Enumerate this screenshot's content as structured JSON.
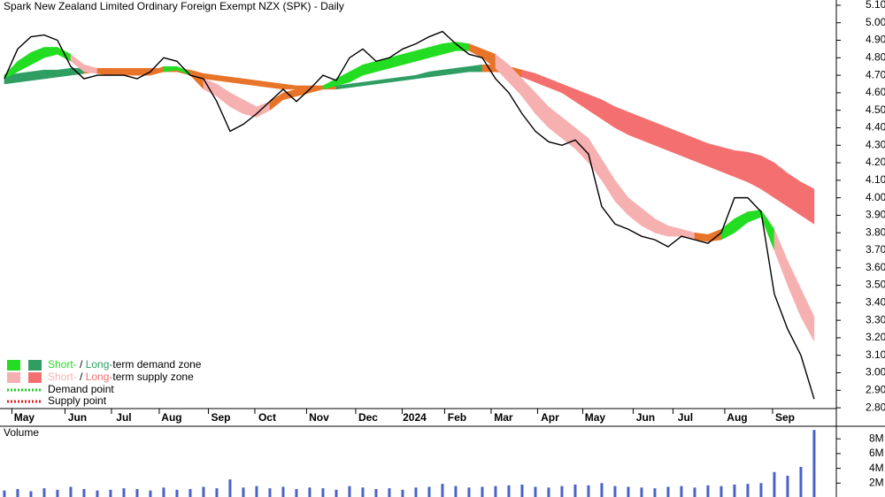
{
  "chart_data": {
    "type": "line",
    "title": "Spark New Zealand Limited Ordinary Foreign Exempt NZX (SPK) - Daily",
    "ylim": [
      2.75,
      5.13
    ],
    "yticks": [
      {
        "value": 2.8,
        "label": "2.80"
      },
      {
        "value": 2.9,
        "label": "2.90"
      },
      {
        "value": 3.0,
        "label": "3.00"
      },
      {
        "value": 3.1,
        "label": "3.10"
      },
      {
        "value": 3.2,
        "label": "3.20"
      },
      {
        "value": 3.3,
        "label": "3.30"
      },
      {
        "value": 3.4,
        "label": "3.40"
      },
      {
        "value": 3.5,
        "label": "3.50"
      },
      {
        "value": 3.6,
        "label": "3.60"
      },
      {
        "value": 3.7,
        "label": "3.70"
      },
      {
        "value": 3.8,
        "label": "3.80"
      },
      {
        "value": 3.9,
        "label": "3.90"
      },
      {
        "value": 4.0,
        "label": "4.00"
      },
      {
        "value": 4.1,
        "label": "4.10"
      },
      {
        "value": 4.2,
        "label": "4.20"
      },
      {
        "value": 4.3,
        "label": "4.30"
      },
      {
        "value": 4.4,
        "label": "4.40"
      },
      {
        "value": 4.5,
        "label": "4.50"
      },
      {
        "value": 4.6,
        "label": "4.60"
      },
      {
        "value": 4.7,
        "label": "4.70"
      },
      {
        "value": 4.8,
        "label": "4.80"
      },
      {
        "value": 4.9,
        "label": "4.90"
      },
      {
        "value": 5.0,
        "label": "5.00"
      },
      {
        "value": 5.1,
        "label": "5.10"
      }
    ],
    "xlim": [
      -0.33,
      62.67
    ],
    "xticks": [
      {
        "value": 1.5,
        "label": "May"
      },
      {
        "value": 5.5,
        "label": "Jun"
      },
      {
        "value": 9,
        "label": "Jul"
      },
      {
        "value": 12.6,
        "label": "Aug"
      },
      {
        "value": 16.3,
        "label": "Sep"
      },
      {
        "value": 19.8,
        "label": "Oct"
      },
      {
        "value": 23.7,
        "label": "Nov"
      },
      {
        "value": 27.4,
        "label": "Dec"
      },
      {
        "value": 30.9,
        "label": "2024"
      },
      {
        "value": 34.1,
        "label": "Feb"
      },
      {
        "value": 37.6,
        "label": "Mar"
      },
      {
        "value": 41.1,
        "label": "Apr"
      },
      {
        "value": 44.5,
        "label": "May"
      },
      {
        "value": 48.3,
        "label": "Jun"
      },
      {
        "value": 51.3,
        "label": "Jul"
      },
      {
        "value": 55.2,
        "label": "Aug"
      },
      {
        "value": 58.8,
        "label": "Sep"
      }
    ],
    "price": {
      "color": "#000000",
      "values": [
        4.68,
        4.85,
        4.92,
        4.93,
        4.9,
        4.75,
        4.68,
        4.7,
        4.7,
        4.7,
        4.68,
        4.72,
        4.8,
        4.78,
        4.7,
        4.68,
        4.55,
        4.38,
        4.42,
        4.48,
        4.55,
        4.62,
        4.55,
        4.62,
        4.7,
        4.67,
        4.8,
        4.85,
        4.78,
        4.8,
        4.85,
        4.88,
        4.92,
        4.95,
        4.88,
        4.82,
        4.8,
        4.68,
        4.6,
        4.48,
        4.38,
        4.32,
        4.3,
        4.33,
        4.25,
        3.95,
        3.85,
        3.82,
        3.78,
        3.76,
        3.72,
        3.78,
        3.76,
        3.74,
        3.8,
        4.0,
        4.0,
        3.92,
        3.45,
        3.25,
        3.1,
        2.85
      ]
    },
    "long_band": {
      "upper": [
        4.7,
        4.71,
        4.72,
        4.73,
        4.73,
        4.74,
        4.74,
        4.74,
        4.74,
        4.74,
        4.74,
        4.74,
        4.74,
        4.74,
        4.73,
        4.71,
        4.7,
        4.69,
        4.68,
        4.67,
        4.66,
        4.65,
        4.64,
        4.64,
        4.64,
        4.64,
        4.65,
        4.66,
        4.67,
        4.68,
        4.69,
        4.7,
        4.72,
        4.73,
        4.74,
        4.75,
        4.76,
        4.76,
        4.75,
        4.73,
        4.71,
        4.68,
        4.65,
        4.62,
        4.59,
        4.56,
        4.52,
        4.49,
        4.46,
        4.43,
        4.4,
        4.37,
        4.34,
        4.31,
        4.29,
        4.27,
        4.26,
        4.24,
        4.2,
        4.14,
        4.09,
        4.05
      ],
      "lower": [
        4.65,
        4.66,
        4.67,
        4.68,
        4.69,
        4.7,
        4.71,
        4.72,
        4.72,
        4.72,
        4.72,
        4.72,
        4.72,
        4.72,
        4.7,
        4.68,
        4.67,
        4.66,
        4.65,
        4.64,
        4.63,
        4.62,
        4.62,
        4.62,
        4.62,
        4.62,
        4.63,
        4.64,
        4.65,
        4.66,
        4.67,
        4.68,
        4.69,
        4.7,
        4.71,
        4.72,
        4.72,
        4.72,
        4.71,
        4.69,
        4.66,
        4.63,
        4.6,
        4.55,
        4.5,
        4.45,
        4.4,
        4.36,
        4.33,
        4.3,
        4.27,
        4.24,
        4.21,
        4.18,
        4.15,
        4.12,
        4.09,
        4.05,
        4.0,
        3.95,
        3.9,
        3.85
      ],
      "colors": [
        "#2e9e63",
        "#2e9e63",
        "#2e9e63",
        "#2e9e63",
        "#2e9e63",
        "#2e9e63",
        "#e8742a",
        "#e8742a",
        "#e8742a",
        "#e8742a",
        "#e8742a",
        "#e8742a",
        "#e8742a",
        "#e8742a",
        "#e8742a",
        "#e8742a",
        "#e8742a",
        "#e8742a",
        "#e8742a",
        "#e8742a",
        "#e8742a",
        "#e8742a",
        "#e8742a",
        "#e8742a",
        "#e8742a",
        "#2e9e63",
        "#2e9e63",
        "#2e9e63",
        "#2e9e63",
        "#2e9e63",
        "#2e9e63",
        "#2e9e63",
        "#2e9e63",
        "#2e9e63",
        "#2e9e63",
        "#2e9e63",
        "#e8742a",
        "#e8742a",
        "#e8742a",
        "#f47070",
        "#f47070",
        "#f47070",
        "#f47070",
        "#f47070",
        "#f47070",
        "#f47070",
        "#f47070",
        "#f47070",
        "#f47070",
        "#f47070",
        "#f47070",
        "#f47070",
        "#f47070",
        "#f47070",
        "#f47070",
        "#f47070",
        "#f47070",
        "#f47070",
        "#f47070",
        "#f47070",
        "#f47070",
        "#f47070"
      ]
    },
    "short_band": {
      "upper": [
        4.7,
        4.78,
        4.83,
        4.86,
        4.86,
        4.82,
        4.76,
        4.74,
        4.73,
        4.73,
        4.72,
        4.72,
        4.75,
        4.75,
        4.72,
        4.68,
        4.65,
        4.6,
        4.56,
        4.52,
        4.55,
        4.6,
        4.62,
        4.62,
        4.64,
        4.68,
        4.72,
        4.76,
        4.78,
        4.8,
        4.82,
        4.84,
        4.86,
        4.88,
        4.89,
        4.88,
        4.85,
        4.82,
        4.76,
        4.68,
        4.6,
        4.52,
        4.46,
        4.4,
        4.34,
        4.22,
        4.1,
        4.0,
        3.94,
        3.88,
        3.84,
        3.82,
        3.8,
        3.79,
        3.82,
        3.88,
        3.92,
        3.93,
        3.82,
        3.64,
        3.48,
        3.32
      ],
      "lower": [
        4.68,
        4.72,
        4.76,
        4.8,
        4.82,
        4.78,
        4.72,
        4.71,
        4.7,
        4.7,
        4.7,
        4.7,
        4.72,
        4.73,
        4.7,
        4.62,
        4.58,
        4.52,
        4.48,
        4.46,
        4.5,
        4.56,
        4.58,
        4.6,
        4.62,
        4.64,
        4.66,
        4.7,
        4.72,
        4.74,
        4.76,
        4.78,
        4.8,
        4.82,
        4.84,
        4.84,
        4.8,
        4.74,
        4.66,
        4.58,
        4.48,
        4.4,
        4.34,
        4.28,
        4.2,
        4.1,
        3.98,
        3.9,
        3.84,
        3.8,
        3.78,
        3.78,
        3.76,
        3.75,
        3.76,
        3.8,
        3.86,
        3.89,
        3.7,
        3.5,
        3.32,
        3.18
      ],
      "colors": [
        "#22dd22",
        "#22dd22",
        "#22dd22",
        "#22dd22",
        "#22dd22",
        "#f7b0b0",
        "#f7b0b0",
        "#e8742a",
        "#e8742a",
        "#e8742a",
        "#e8742a",
        "#e8742a",
        "#22dd22",
        "#22dd22",
        "#e8742a",
        "#f7b0b0",
        "#f7b0b0",
        "#f7b0b0",
        "#f7b0b0",
        "#f7b0b0",
        "#e8742a",
        "#e8742a",
        "#e8742a",
        "#e8742a",
        "#22dd22",
        "#22dd22",
        "#22dd22",
        "#22dd22",
        "#22dd22",
        "#22dd22",
        "#22dd22",
        "#22dd22",
        "#22dd22",
        "#22dd22",
        "#22dd22",
        "#e8742a",
        "#e8742a",
        "#f7b0b0",
        "#f7b0b0",
        "#f7b0b0",
        "#f7b0b0",
        "#f7b0b0",
        "#f7b0b0",
        "#f7b0b0",
        "#f7b0b0",
        "#f7b0b0",
        "#f7b0b0",
        "#f7b0b0",
        "#f7b0b0",
        "#f7b0b0",
        "#f7b0b0",
        "#f7b0b0",
        "#e8742a",
        "#e8742a",
        "#22dd22",
        "#22dd22",
        "#22dd22",
        "#22dd22",
        "#f7b0b0",
        "#f7b0b0",
        "#f7b0b0",
        "#f7b0b0"
      ]
    },
    "legend": {
      "demand": {
        "short": "Short-",
        "sep": " / ",
        "long": "Long-",
        "rest": "term demand zone",
        "short_color": "#22dd22",
        "long_color": "#2e9e63"
      },
      "supply": {
        "short": "Short-",
        "sep": " / ",
        "long": "Long-",
        "rest": "term supply zone",
        "short_color": "#f7b0b0",
        "long_color": "#f47070"
      },
      "demand_point": {
        "label": "Demand point",
        "color": "#22cc22"
      },
      "supply_point": {
        "label": "Supply point",
        "color": "#e02020"
      }
    },
    "volume": {
      "label": "Volume",
      "color": "#6a3d9a",
      "bar_color": "#4a62c8",
      "ylim": [
        0,
        9700000
      ],
      "yticks": [
        {
          "value": 2000000,
          "label": "2M"
        },
        {
          "value": 4000000,
          "label": "4M"
        },
        {
          "value": 6000000,
          "label": "6M"
        },
        {
          "value": 8000000,
          "label": "8M"
        }
      ],
      "values": [
        1000000,
        1200000,
        900000,
        1300000,
        1100000,
        1500000,
        1200000,
        1000000,
        1100000,
        1300000,
        1200000,
        1000000,
        1400000,
        1100000,
        1200000,
        1500000,
        1300000,
        2500000,
        1400000,
        1600000,
        1300000,
        1500000,
        1200000,
        1400000,
        1300000,
        1100000,
        1600000,
        1400000,
        1200000,
        1300000,
        1100000,
        1400000,
        1500000,
        1900000,
        1600000,
        1400000,
        1500000,
        1600000,
        1700000,
        1800000,
        1500000,
        1400000,
        1600000,
        1800000,
        1700000,
        2000000,
        1600000,
        1500000,
        1400000,
        1300000,
        1500000,
        1600000,
        1400000,
        1700000,
        1600000,
        1800000,
        1900000,
        2000000,
        3500000,
        3000000,
        4200000,
        9200000
      ]
    }
  }
}
